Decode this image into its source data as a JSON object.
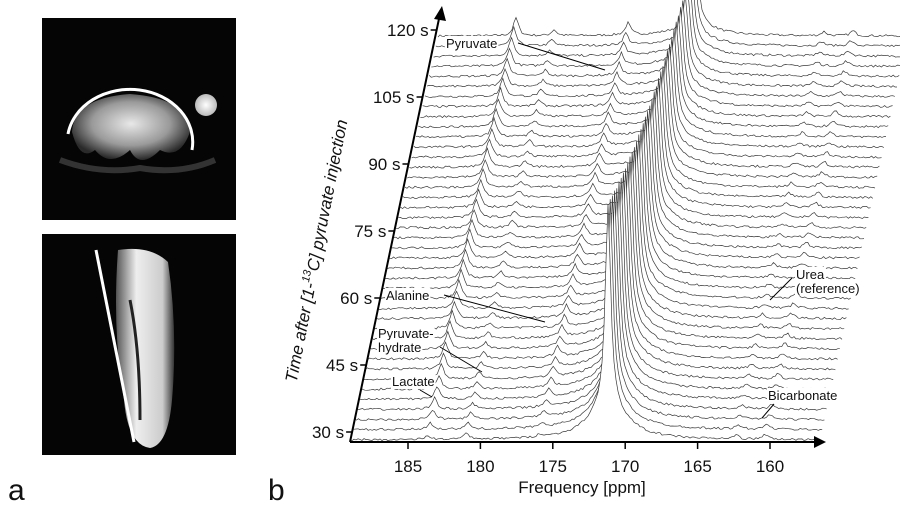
{
  "panel_a": {
    "label": "a"
  },
  "panel_b": {
    "label": "b",
    "y_axis_label": {
      "before": "Time after [1-",
      "superscript": "13",
      "after": "C] pyruvate injection"
    },
    "time_ticks": [
      "30 s",
      "45 s",
      "60 s",
      "75 s",
      "90 s",
      "105 s",
      "120 s"
    ],
    "frequency_ticks": [
      "185",
      "180",
      "175",
      "170",
      "165",
      "160"
    ],
    "x_axis_label": "Frequency [ppm]",
    "annotations": [
      {
        "lines": [
          "Pyruvate"
        ]
      },
      {
        "lines": [
          "Alanine"
        ]
      },
      {
        "lines": [
          "Pyruvate-",
          "hydrate"
        ]
      },
      {
        "lines": [
          "Lactate"
        ]
      },
      {
        "lines": [
          "Urea",
          "(reference)"
        ]
      },
      {
        "lines": [
          "Bicarbonate"
        ]
      }
    ]
  }
}
